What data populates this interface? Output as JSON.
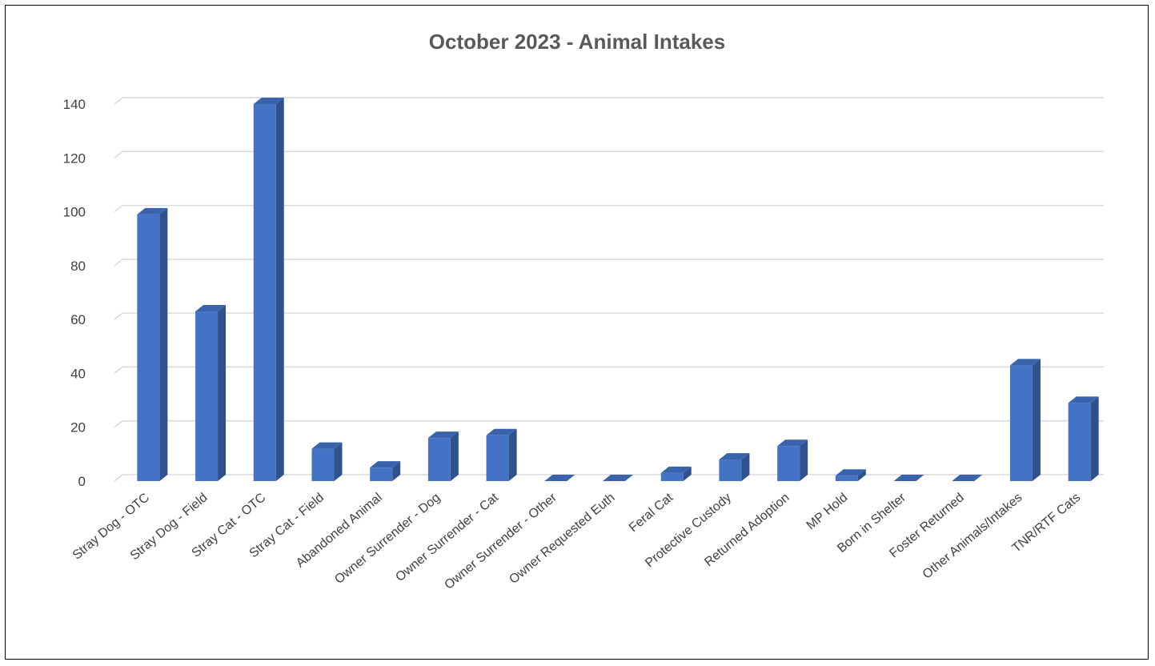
{
  "chart_data": {
    "type": "bar",
    "style": "3d-column",
    "title": "October 2023 - Animal Intakes",
    "xlabel": "",
    "ylabel": "",
    "ylim": [
      0,
      140
    ],
    "yticks": [
      0,
      20,
      40,
      60,
      80,
      100,
      120,
      140
    ],
    "grid": true,
    "legend": "none",
    "categories": [
      "Stray Dog - OTC",
      "Stray Dog - Field",
      "Stray Cat - OTC",
      "Stray Cat - Field",
      "Abandoned Animal",
      "Owner Surrender - Dog",
      "Owner Surrender - Cat",
      "Owner Surrender - Other",
      "Owner Requested Euth",
      "Feral Cat",
      "Protective Custody",
      "Returned Adoption",
      "MP Hold",
      "Born in Shelter",
      "Foster Returned",
      "Other Animals/Intakes",
      "TNR/RTF Cats"
    ],
    "values": [
      99,
      63,
      140,
      12,
      5,
      16,
      17,
      0,
      0,
      3,
      8,
      13,
      2,
      0,
      0,
      43,
      29
    ],
    "colors": {
      "bar_front": "#4472c4",
      "bar_side": "#2f528f",
      "bar_top": "#3a63ad",
      "grid": "#d9d9d9",
      "text": "#404040",
      "title": "#595959"
    }
  }
}
